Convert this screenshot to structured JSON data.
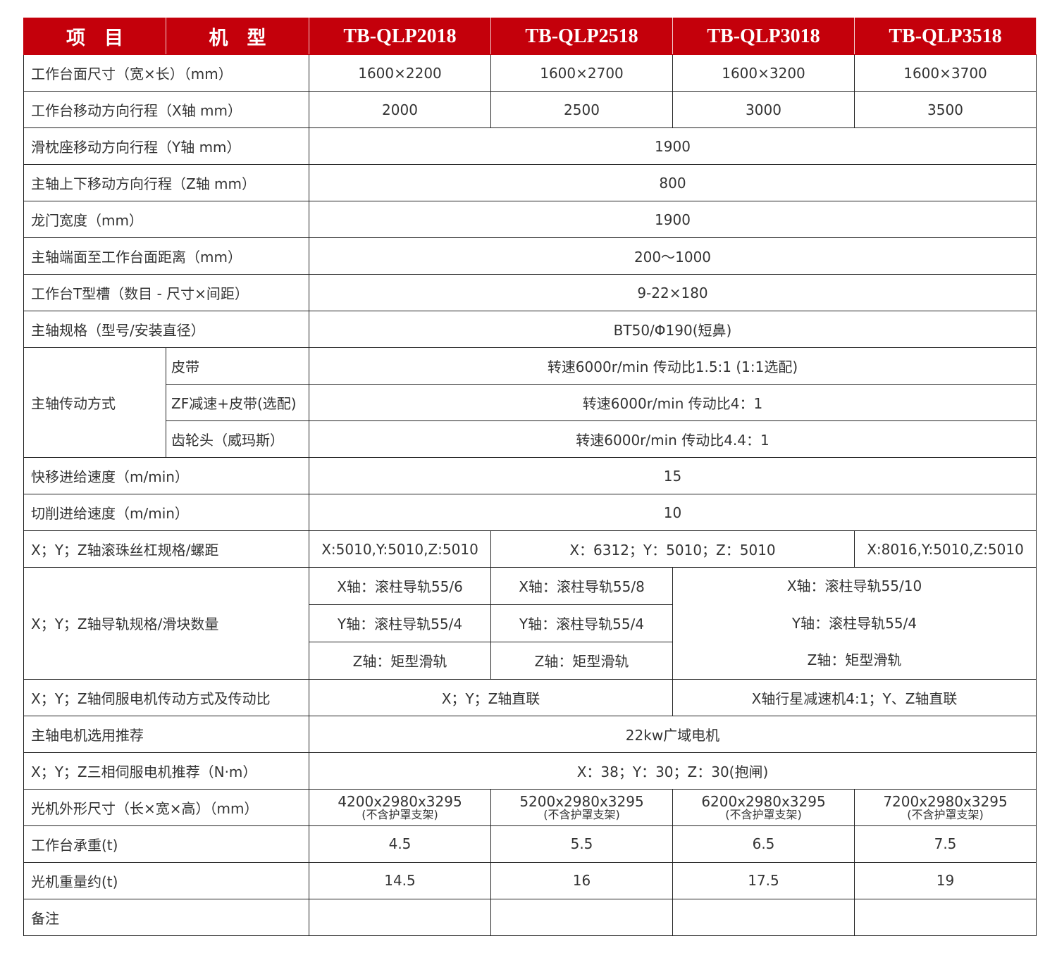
{
  "header": {
    "item": "项　目",
    "model": "机　型",
    "models": [
      "TB-QLP2018",
      "TB-QLP2518",
      "TB-QLP3018",
      "TB-QLP3518"
    ]
  },
  "rows": {
    "table_size": {
      "label": "工作台面尺寸（宽×长）（mm）",
      "values": [
        "1600×2200",
        "1600×2700",
        "1600×3200",
        "1600×3700"
      ]
    },
    "x_travel": {
      "label": "工作台移动方向行程（X轴 mm）",
      "values": [
        "2000",
        "2500",
        "3000",
        "3500"
      ]
    },
    "y_travel": {
      "label": "滑枕座移动方向行程（Y轴 mm）",
      "value": "1900"
    },
    "z_travel": {
      "label": "主轴上下移动方向行程（Z轴 mm）",
      "value": "800"
    },
    "gantry_width": {
      "label": "龙门宽度（mm）",
      "value": "1900"
    },
    "spindle_distance": {
      "label": "主轴端面至工作台面距离（mm）",
      "value": "200～1000"
    },
    "t_slot": {
      "label": "工作台T型槽（数目 - 尺寸×间距）",
      "value": "9-22×180"
    },
    "spindle_spec": {
      "label": "主轴规格（型号/安装直径）",
      "value": "BT50/Φ190(短鼻)"
    },
    "drive": {
      "label": "主轴传动方式",
      "items": [
        {
          "label": "皮带",
          "value": "转速6000r/min 传动比1.5:1 (1:1选配)"
        },
        {
          "label": "ZF减速+皮带(选配)",
          "value": "转速6000r/min 传动比4：1"
        },
        {
          "label": "齿轮头（威玛斯）",
          "value": "转速6000r/min 传动比4.4：1"
        }
      ]
    },
    "rapid_feed": {
      "label": "快移进给速度（m/min）",
      "value": "15"
    },
    "cutting_feed": {
      "label": "切削进给速度（m/min）",
      "value": "10"
    },
    "ballscrew": {
      "label": "X；Y；Z轴滚珠丝杠规格/螺距",
      "values": [
        "X:5010,Y:5010,Z:5010",
        "X：6312；Y：5010；Z：5010",
        "X:8016,Y:5010,Z:5010"
      ]
    },
    "guide": {
      "label": "X；Y；Z轴导轨规格/滑块数量",
      "col1": [
        "X轴：滚柱导轨55/6",
        "Y轴：滚柱导轨55/4",
        "Z轴：矩型滑轨"
      ],
      "col2": [
        "X轴：滚柱导轨55/8",
        "Y轴：滚柱导轨55/4",
        "Z轴：矩型滑轨"
      ],
      "col3": [
        "X轴：滚柱导轨55/10",
        "Y轴：滚柱导轨55/4",
        "Z轴：矩型滑轨"
      ]
    },
    "servo_drive": {
      "label": "X；Y；Z轴伺服电机传动方式及传动比",
      "values": [
        "X；Y；Z轴直联",
        "X轴行星减速机4:1；Y、Z轴直联"
      ]
    },
    "spindle_motor": {
      "label": "主轴电机选用推荐",
      "value": "22kw广域电机"
    },
    "servo_motor": {
      "label": "X；Y；Z三相伺服电机推荐（N·m）",
      "value": "X：38；Y：30；Z：30(抱闸)"
    },
    "dimensions": {
      "label": "光机外形尺寸（长×宽×高）（mm）",
      "values": [
        "4200x2980x3295",
        "5200x2980x3295",
        "6200x2980x3295",
        "7200x2980x3295"
      ],
      "note": "(不含护罩支架)"
    },
    "load": {
      "label": "工作台承重(t)",
      "values": [
        "4.5",
        "5.5",
        "6.5",
        "7.5"
      ]
    },
    "weight": {
      "label": "光机重量约(t)",
      "values": [
        "14.5",
        "16",
        "17.5",
        "19"
      ]
    },
    "remarks": {
      "label": "备注"
    }
  },
  "colors": {
    "header_bg": "#c4000b",
    "header_text": "#ffffff",
    "border": "#222222"
  }
}
